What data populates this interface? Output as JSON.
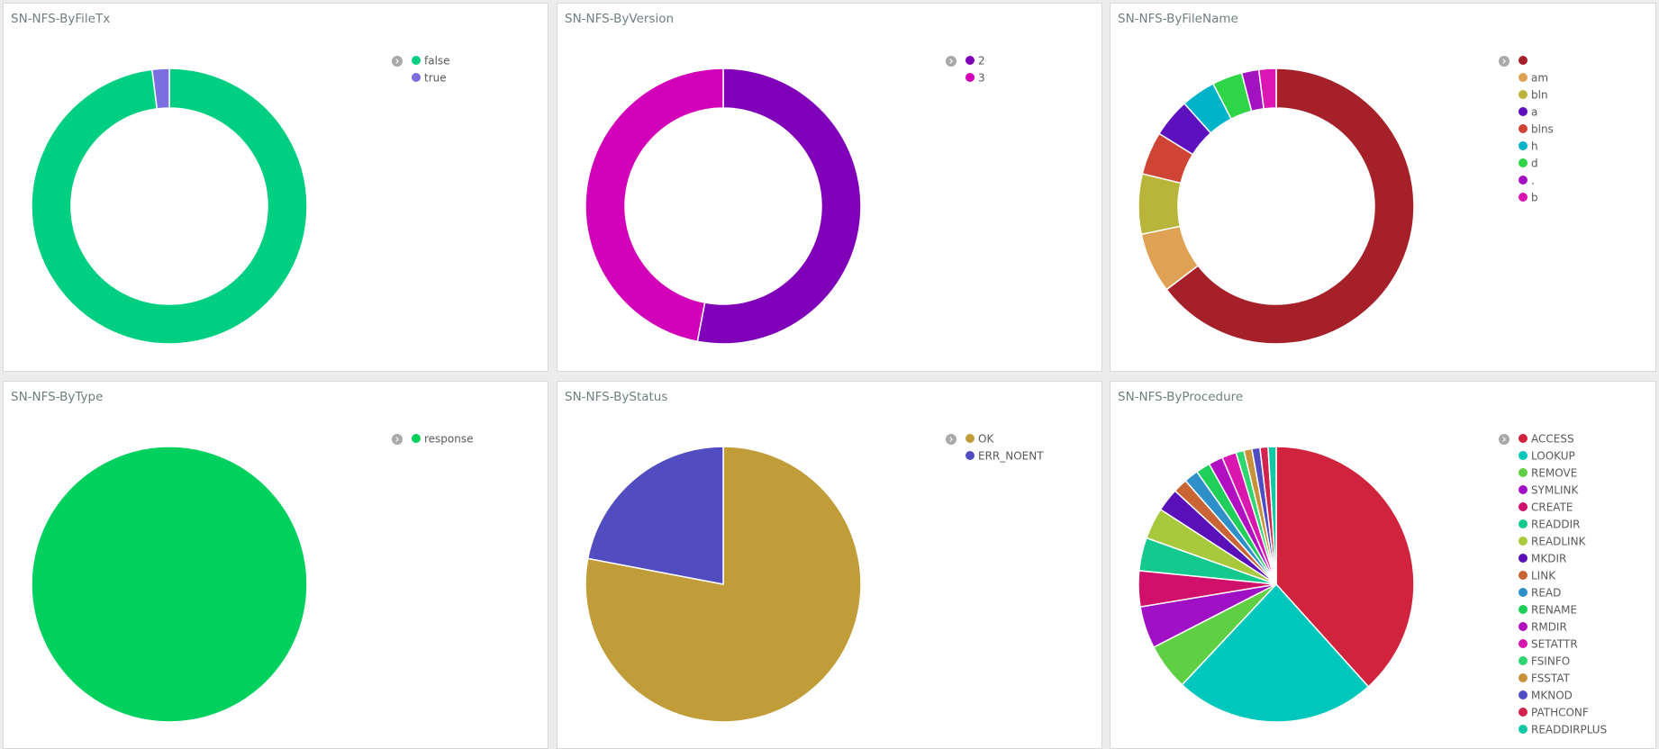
{
  "chart_data": [
    {
      "title": "SN-NFS-ByFileTx",
      "type": "pie",
      "donut": true,
      "categories": [
        "false",
        "true"
      ],
      "values": [
        98,
        2
      ],
      "colors": [
        "#00cf81",
        "#7b6ee0"
      ]
    },
    {
      "title": "SN-NFS-ByVersion",
      "type": "pie",
      "donut": true,
      "categories": [
        "2",
        "3"
      ],
      "values": [
        53,
        47
      ],
      "colors": [
        "#7f00b8",
        "#d200b8"
      ]
    },
    {
      "title": "SN-NFS-ByFileName",
      "type": "pie",
      "donut": true,
      "categories": [
        "",
        "am",
        "bln",
        "a",
        "blns",
        "h",
        "d",
        ".",
        "b"
      ],
      "values": [
        64,
        7,
        7,
        4.5,
        5,
        4,
        3.5,
        2,
        2
      ],
      "colors": [
        "#a52029",
        "#dfa254",
        "#b9b43a",
        "#5c10be",
        "#d04435",
        "#00b3c9",
        "#2dd547",
        "#a312c0",
        "#db16b3"
      ]
    },
    {
      "title": "SN-NFS-ByType",
      "type": "pie",
      "donut": false,
      "categories": [
        "response"
      ],
      "values": [
        100
      ],
      "colors": [
        "#00d05e"
      ]
    },
    {
      "title": "SN-NFS-ByStatus",
      "type": "pie",
      "donut": false,
      "categories": [
        "OK",
        "ERR_NOENT"
      ],
      "values": [
        78,
        22
      ],
      "colors": [
        "#c19d3a",
        "#514cc0"
      ]
    },
    {
      "title": "SN-NFS-ByProcedure",
      "type": "pie",
      "donut": false,
      "categories": [
        "ACCESS",
        "LOOKUP",
        "REMOVE",
        "SYMLINK",
        "CREATE",
        "READDIR",
        "READLINK",
        "MKDIR",
        "LINK",
        "READ",
        "RENAME",
        "RMDIR",
        "SETATTR",
        "FSINFO",
        "FSSTAT",
        "MKNOD",
        "PATHCONF",
        "READDIRPLUS"
      ],
      "values": [
        36.5,
        22.5,
        5.2,
        4.7,
        4,
        3.7,
        3.5,
        2.6,
        1.6,
        1.6,
        1.6,
        1.6,
        1.6,
        0.9,
        0.9,
        0.9,
        0.9,
        0.9
      ],
      "colors": [
        "#d0233d",
        "#00c7bc",
        "#5fcf43",
        "#a010c4",
        "#d0106b",
        "#14c98d",
        "#a8c93c",
        "#5a10b8",
        "#c96434",
        "#2f8fc8",
        "#20cf5a",
        "#b010c0",
        "#d916ad",
        "#2fd66f",
        "#c9923a",
        "#4f4cc4",
        "#d2234f",
        "#12c8a2"
      ]
    }
  ]
}
